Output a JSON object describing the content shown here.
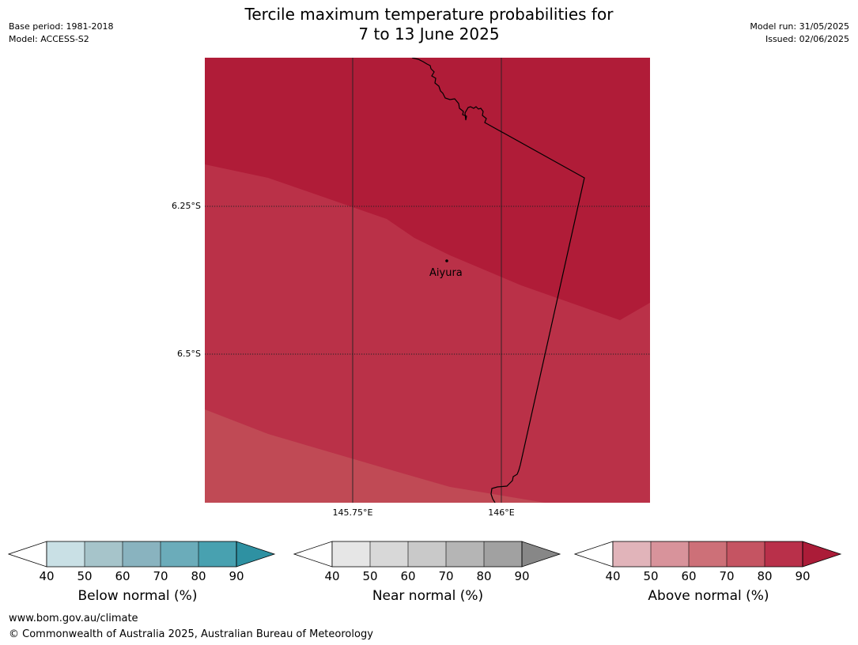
{
  "meta_left": {
    "base_period": "Base period: 1981-2018",
    "model": "Model: ACCESS-S2"
  },
  "meta_right": {
    "model_run": "Model run: 31/05/2025",
    "issued": "Issued: 02/06/2025"
  },
  "title": {
    "line1": "Tercile maximum temperature probabilities for",
    "line2": "7 to 13 June 2025"
  },
  "map": {
    "latitude_labels": [
      "6.25°S",
      "6.5°S"
    ],
    "longitude_labels": [
      "145.75°E",
      "146°E"
    ],
    "place": "Aiyura",
    "zone_colors": {
      "dark": "#b01c38",
      "mid": "#ba3148",
      "light": "#c04a55"
    }
  },
  "legends": [
    {
      "title": "Below normal (%)",
      "ticks": [
        "40",
        "50",
        "60",
        "70",
        "80",
        "90"
      ],
      "colors": [
        "#c9e0e5",
        "#a6c4ca",
        "#89b3bf",
        "#6bacba",
        "#48a1b0",
        "#2e91a2"
      ]
    },
    {
      "title": "Near normal (%)",
      "ticks": [
        "40",
        "50",
        "60",
        "70",
        "80",
        "90"
      ],
      "colors": [
        "#e6e6e6",
        "#d8d8d8",
        "#c9c9c9",
        "#b5b5b5",
        "#a1a1a1",
        "#878787"
      ]
    },
    {
      "title": "Above normal (%)",
      "ticks": [
        "40",
        "50",
        "60",
        "70",
        "80",
        "90"
      ],
      "colors": [
        "#e1b4ba",
        "#d8939b",
        "#cd7078",
        "#c55462",
        "#b9304a",
        "#ab1c38"
      ]
    }
  ],
  "footer": {
    "url": "www.bom.gov.au/climate",
    "copyright": "© Commonwealth of Australia 2025, Australian Bureau of Meteorology"
  }
}
